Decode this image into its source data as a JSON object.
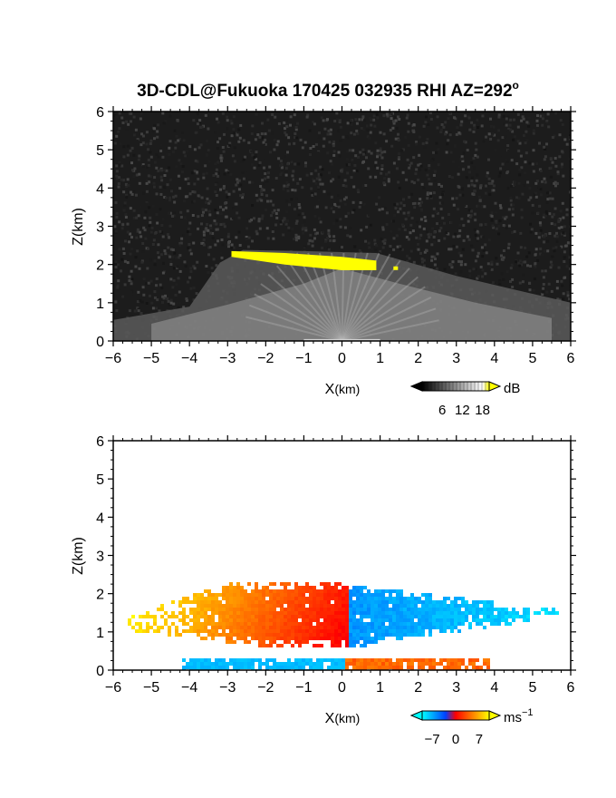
{
  "title": "3D-CDL@Fukuoka 170425 032935 RHI AZ=292",
  "title_suffix": "o",
  "chart_data": [
    {
      "type": "heatmap",
      "panel": "top",
      "variable": "backscatter intensity",
      "xlabel_main": "X",
      "xlabel_unit": "(km)",
      "ylabel": "Z(km)",
      "xlim": [
        -6,
        6
      ],
      "ylim": [
        0,
        6
      ],
      "xticks": [
        -6,
        -5,
        -4,
        -3,
        -2,
        -1,
        0,
        1,
        2,
        3,
        4,
        5,
        6
      ],
      "yticks": [
        0,
        1,
        2,
        3,
        4,
        5,
        6
      ],
      "colorbar": {
        "unit": "dB",
        "ticks": [
          6,
          12,
          18
        ],
        "range": [
          0,
          20
        ],
        "colors": [
          "#000000",
          "#ffffff",
          "#ffff00"
        ]
      },
      "features": {
        "high_return_layer": {
          "x_range": [
            -2.9,
            0.9
          ],
          "z_range": [
            1.85,
            2.35
          ],
          "color": "#ffff00"
        },
        "aerosol_layer_top_km": 2.4,
        "noise_level": "dark gray speckle above 2.5 km"
      }
    },
    {
      "type": "heatmap",
      "panel": "bottom",
      "variable": "radial velocity",
      "xlabel_main": "X",
      "xlabel_unit": "(km)",
      "ylabel": "Z(km)",
      "xlim": [
        -6,
        6
      ],
      "ylim": [
        0,
        6
      ],
      "xticks": [
        -6,
        -5,
        -4,
        -3,
        -2,
        -1,
        0,
        1,
        2,
        3,
        4,
        5,
        6
      ],
      "yticks": [
        0,
        1,
        2,
        3,
        4,
        5,
        6
      ],
      "colorbar": {
        "unit_base": "ms",
        "unit_exp": "−1",
        "ticks": [
          "−7",
          "0",
          "7"
        ],
        "tick_values": [
          -7,
          0,
          7
        ],
        "range": [
          -10,
          10
        ],
        "colors": [
          "#00ffff",
          "#0040ff",
          "#ff0000",
          "#ff8000",
          "#ffff00"
        ]
      },
      "features": {
        "positive_region_x_range": [
          -5.7,
          0.1
        ],
        "negative_region_x_range": [
          0.1,
          5.7
        ],
        "layer_z_range": [
          0.6,
          2.6
        ],
        "surface_layer_z_range": [
          0.0,
          0.35
        ]
      }
    }
  ]
}
